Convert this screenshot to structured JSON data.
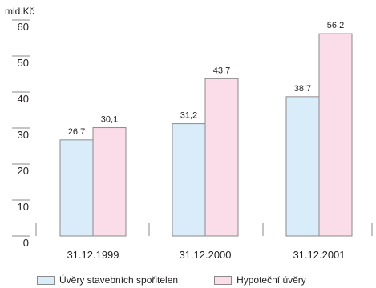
{
  "chart_data": {
    "type": "bar",
    "unit_label": "mld.Kč",
    "categories": [
      "31.12.1999",
      "31.12.2000",
      "31.12.2001"
    ],
    "series": [
      {
        "name": "Úvěry stavebních spořitelen",
        "values": [
          26.7,
          31.2,
          38.7
        ],
        "labels": [
          "26,7",
          "31,2",
          "38,7"
        ],
        "color": "#d9ecfa"
      },
      {
        "name": "Hypoteční úvěry",
        "values": [
          30.1,
          43.7,
          56.2
        ],
        "labels": [
          "30,1",
          "43,7",
          "56,2"
        ],
        "color": "#fbdde9"
      }
    ],
    "yticks": [
      0,
      10,
      20,
      30,
      40,
      50,
      60
    ],
    "ylim": [
      0,
      63
    ],
    "grid": false,
    "legend_position": "bottom",
    "bar_border_color": "#8a8a8a"
  }
}
